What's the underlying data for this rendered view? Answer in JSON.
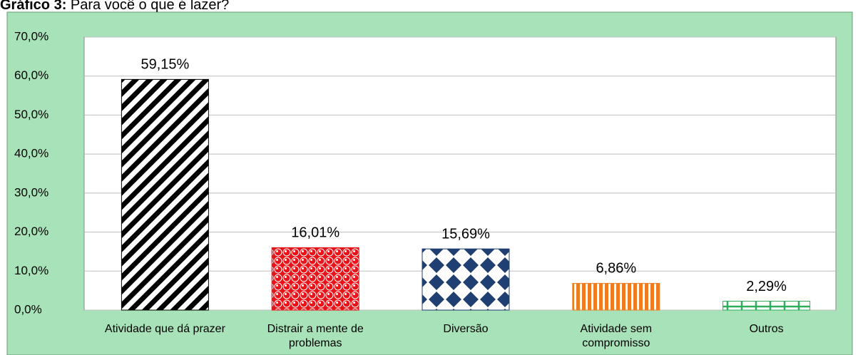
{
  "chart_data": {
    "type": "bar",
    "title_label": "Gráfico 3:",
    "title": "Para você o que é lazer?",
    "categories": [
      "Atividade que dá prazer",
      "Distrair a mente de problemas",
      "Diversão",
      "Atividade sem compromisso",
      "Outros"
    ],
    "values": [
      59.15,
      16.01,
      15.69,
      6.86,
      2.29
    ],
    "value_labels": [
      "59,15%",
      "16,01%",
      "15,69%",
      "6,86%",
      "2,29%"
    ],
    "colors": [
      "#000000",
      "#e8141a",
      "#1f3f73",
      "#ee7d22",
      "#2eae5a"
    ],
    "ylim": [
      0,
      70
    ],
    "yticks": [
      {
        "value": 0,
        "label": "0,0%"
      },
      {
        "value": 10,
        "label": "10,0%"
      },
      {
        "value": 20,
        "label": "20,0%"
      },
      {
        "value": 30,
        "label": "30,0%"
      },
      {
        "value": 40,
        "label": "40,0%"
      },
      {
        "value": 50,
        "label": "50,0%"
      },
      {
        "value": 60,
        "label": "60,0%"
      },
      {
        "value": 70,
        "label": "70,0%"
      }
    ],
    "grid": true
  }
}
